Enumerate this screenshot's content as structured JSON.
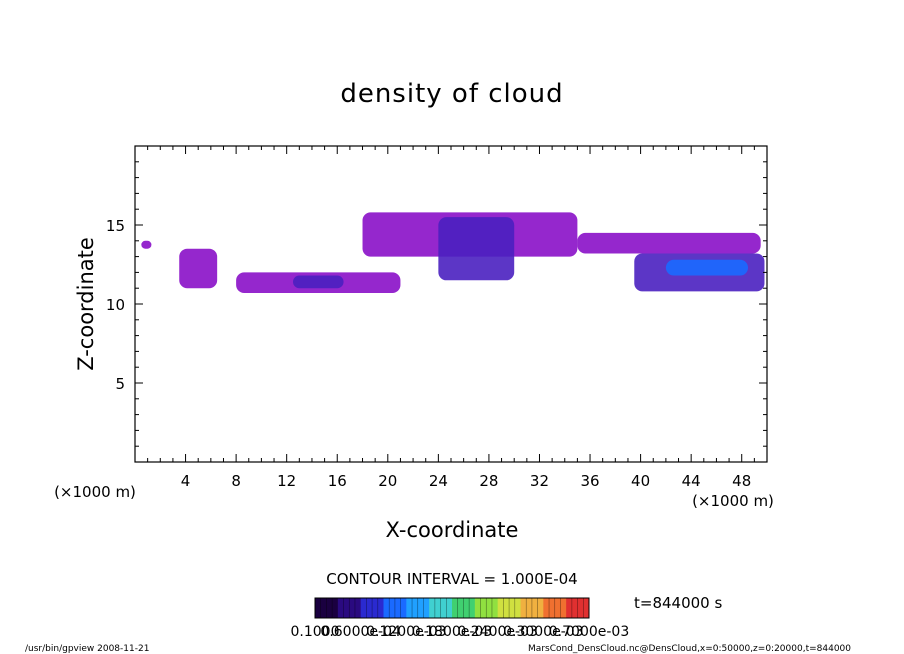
{
  "chart_data": {
    "type": "heatmap",
    "title": "density of cloud",
    "xlabel": "X-coordinate",
    "ylabel": "Z-coordinate",
    "x_unit_label": "(×1000 m)",
    "y_unit_label": "(×1000 m)",
    "xlim": [
      0,
      50
    ],
    "ylim": [
      0,
      20
    ],
    "x_ticks": [
      "4",
      "8",
      "12",
      "16",
      "20",
      "24",
      "28",
      "32",
      "36",
      "40",
      "44",
      "48"
    ],
    "y_ticks": [
      "5",
      "10",
      "15"
    ],
    "contour_interval_text": "CONTOUR INTERVAL = 1.000E-04",
    "time_text": "t=844000 s",
    "colorbar": {
      "range": [
        0.0001,
        0.0007
      ],
      "tick_labels": [
        "0.1000",
        "0.6000e-04",
        "0.1200e-03",
        "0.1800e-03",
        "0.2400e-03",
        "0.3000e-03",
        "0.7000e-03"
      ],
      "colors": [
        "#1a0040",
        "#2a0a80",
        "#2a2ad0",
        "#1a6aff",
        "#20a0ff",
        "#40d0d0",
        "#40d070",
        "#90e040",
        "#d0e040",
        "#f0b040",
        "#f07030",
        "#e03030"
      ]
    },
    "cloud_regions": [
      {
        "x": [
          0.5,
          1.3
        ],
        "z": [
          13.5,
          14.0
        ],
        "level": "low"
      },
      {
        "x": [
          3.5,
          6.5
        ],
        "z": [
          11.0,
          13.5
        ],
        "level": "low"
      },
      {
        "x": [
          8.0,
          21.0
        ],
        "z": [
          10.7,
          12.0
        ],
        "level": "low"
      },
      {
        "x": [
          12.5,
          16.5
        ],
        "z": [
          11.0,
          11.8
        ],
        "level": "medium"
      },
      {
        "x": [
          18.0,
          35.0
        ],
        "z": [
          13.0,
          15.8
        ],
        "level": "low"
      },
      {
        "x": [
          24.0,
          30.0
        ],
        "z": [
          11.5,
          15.5
        ],
        "level": "medium"
      },
      {
        "x": [
          35.0,
          49.5
        ],
        "z": [
          13.2,
          14.5
        ],
        "level": "low"
      },
      {
        "x": [
          39.5,
          49.8
        ],
        "z": [
          10.8,
          13.2
        ],
        "level": "medium"
      },
      {
        "x": [
          42.0,
          48.5
        ],
        "z": [
          11.8,
          12.8
        ],
        "level": "high"
      }
    ]
  },
  "footer": {
    "program": "/usr/bin/gpview   2008-11-21",
    "source": "MarsCond_DensCloud.nc@DensCloud,x=0:50000,z=0:20000,t=844000"
  }
}
